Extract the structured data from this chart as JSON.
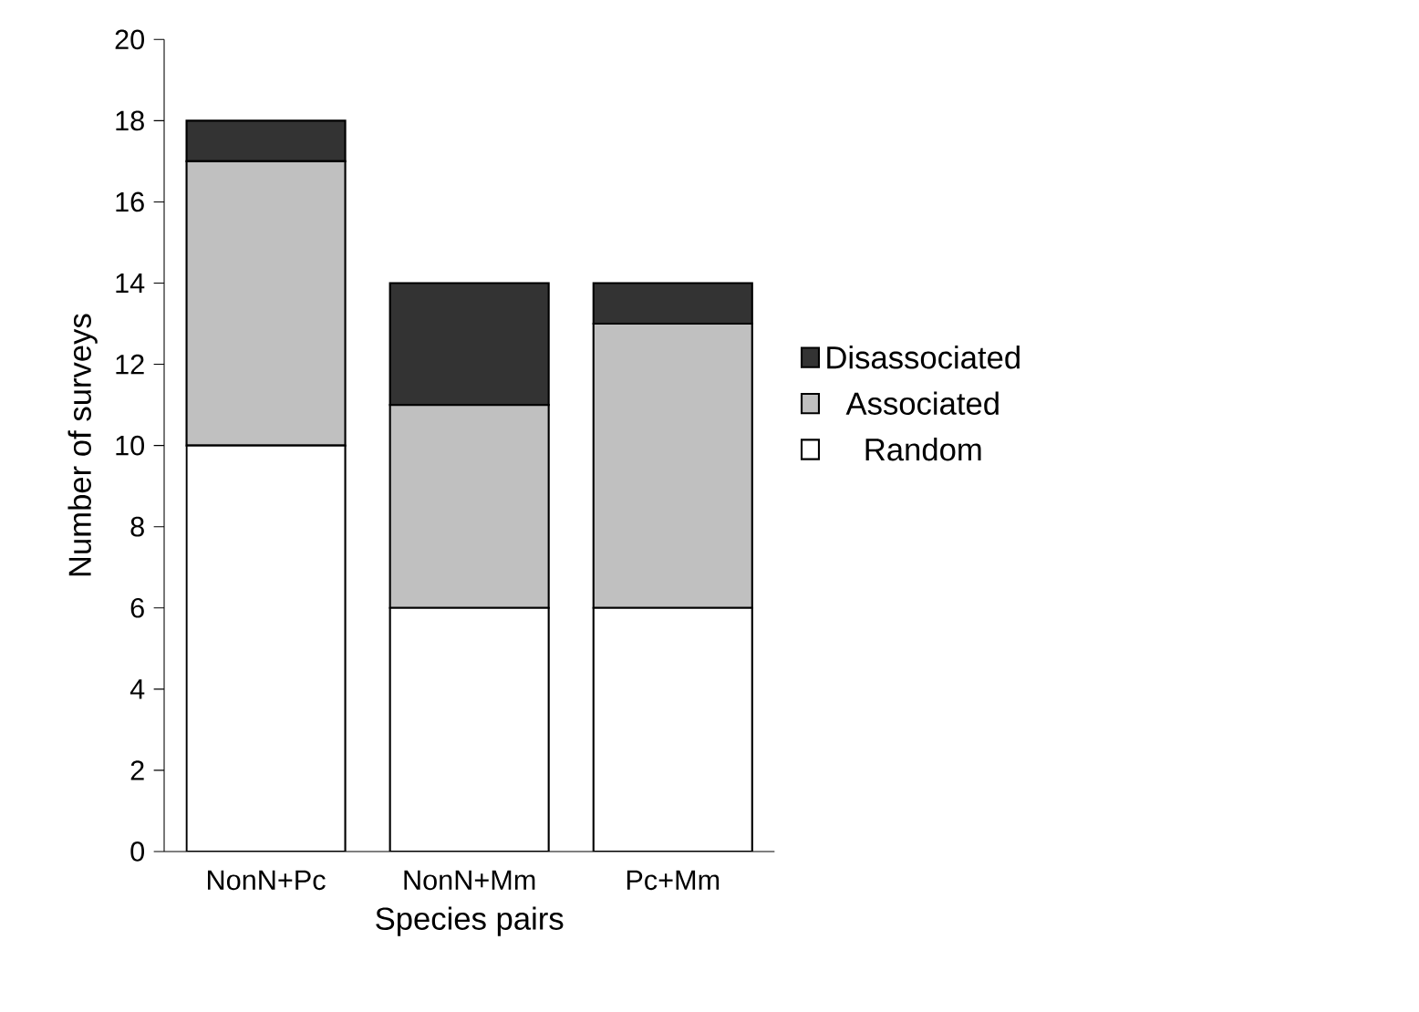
{
  "chart_data": {
    "type": "bar",
    "stacked": true,
    "xlabel": "Species pairs",
    "ylabel": "Number of surveys",
    "categories": [
      "NonN+Pc",
      "NonN+Mm",
      "Pc+Mm"
    ],
    "series": [
      {
        "name": "Random",
        "color": "#ffffff",
        "values": [
          10,
          6,
          6
        ]
      },
      {
        "name": "Associated",
        "color": "#c0c0c0",
        "values": [
          7,
          5,
          7
        ]
      },
      {
        "name": "Disassociated",
        "color": "#333333",
        "values": [
          1,
          3,
          1
        ]
      }
    ],
    "ylim": [
      0,
      20
    ],
    "yticks": [
      0,
      2,
      4,
      6,
      8,
      10,
      12,
      14,
      16,
      18,
      20
    ],
    "grid": false,
    "legend": "right"
  }
}
